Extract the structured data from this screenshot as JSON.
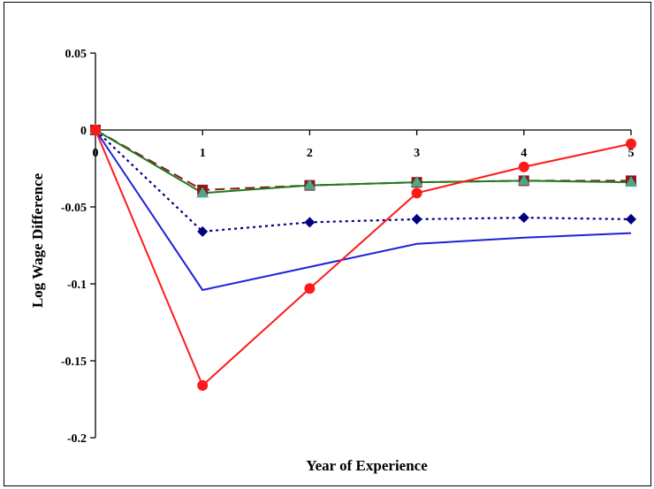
{
  "chart_data": {
    "type": "line",
    "title": "",
    "xlabel": "Year of Experience",
    "ylabel": "Log Wage Difference",
    "x": [
      0,
      1,
      2,
      3,
      4,
      5
    ],
    "x_tick_labels": [
      "0",
      "1",
      "2",
      "3",
      "4",
      "5"
    ],
    "xlim": [
      0,
      5
    ],
    "ylim": [
      -0.2,
      0.05
    ],
    "y_ticks": [
      0.05,
      0,
      -0.05,
      -0.1,
      -0.15,
      -0.2
    ],
    "y_tick_labels": [
      "0.05",
      "0",
      "-0.05",
      "-0.1",
      "-0.15",
      "-0.2"
    ],
    "grid": false,
    "legend": false,
    "series": [
      {
        "values": [
          0,
          -0.104,
          -0.089,
          -0.074,
          -0.07,
          -0.067
        ],
        "color": "#1f1fdc",
        "line": "solid",
        "marker": "none"
      },
      {
        "values": [
          0,
          -0.066,
          -0.06,
          -0.058,
          -0.057,
          -0.058
        ],
        "color": "#000080",
        "line": "dotted",
        "marker": "diamond"
      },
      {
        "values": [
          0,
          -0.039,
          -0.036,
          -0.034,
          -0.033,
          -0.033
        ],
        "color": "#8b1a1a",
        "line": "dashed",
        "marker": "square"
      },
      {
        "values": [
          0,
          -0.041,
          -0.036,
          -0.034,
          -0.033,
          -0.034
        ],
        "color": "#1f7a1f",
        "marker_color": "#4aa88a",
        "line": "solid",
        "marker": "triangle"
      },
      {
        "values": [
          0,
          -0.166,
          -0.103,
          -0.041,
          -0.024,
          -0.009
        ],
        "color": "#ff1a1a",
        "line": "solid",
        "marker": "circle"
      }
    ]
  }
}
